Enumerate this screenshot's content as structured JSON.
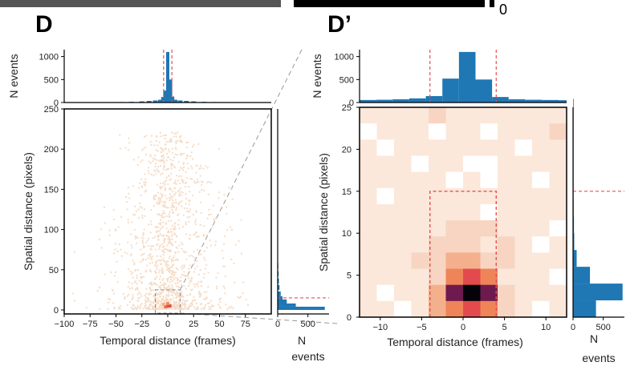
{
  "panels": {
    "left_letter": "D",
    "right_letter": "D’",
    "top_zero": "0"
  },
  "chart_data": [
    {
      "id": "D-main",
      "type": "heatmap",
      "xlabel": "Temporal distance (frames)",
      "ylabel": "Spatial distance (pixels)",
      "xlim": [
        -100,
        100
      ],
      "ylim": [
        -5,
        250
      ],
      "x_ticks": [
        "−100",
        "−75",
        "−50",
        "−25",
        "0",
        "25",
        "50",
        "75"
      ],
      "x_tick_values": [
        -100,
        -75,
        -50,
        -25,
        0,
        25,
        50,
        75
      ],
      "y_ticks": [
        "0",
        "50",
        "100",
        "150",
        "200",
        "250"
      ],
      "y_tick_values": [
        0,
        50,
        100,
        150,
        200,
        250
      ],
      "colormap": [
        "#f7e1d0",
        "#f4a582",
        "#d6604d",
        "#8b1a4a",
        "#1a0a1f"
      ],
      "threshold_box": {
        "x": [
          -4,
          4
        ],
        "y": [
          0,
          15
        ]
      },
      "zoom_box": {
        "x": [
          -12,
          12
        ],
        "y": [
          0,
          25
        ]
      }
    },
    {
      "id": "D-top-hist",
      "type": "bar",
      "ylabel": "N events",
      "y_ticks": [
        "0",
        "500",
        "1000"
      ],
      "y_tick_values": [
        0,
        500,
        1000
      ],
      "ylim": [
        0,
        1150
      ],
      "bin_centers": [
        -60,
        -45,
        -35,
        -25,
        -18,
        -12,
        -7,
        -4,
        -2,
        0,
        2,
        4,
        7,
        12,
        18,
        25,
        35,
        45,
        60
      ],
      "values": [
        5,
        10,
        15,
        25,
        35,
        45,
        60,
        120,
        260,
        1100,
        500,
        130,
        60,
        45,
        35,
        25,
        15,
        10,
        5
      ],
      "bar_color": "#1f77b4",
      "threshold_lines_x": [
        -4,
        4
      ]
    },
    {
      "id": "D-right-hist",
      "type": "bar",
      "orientation": "horizontal",
      "xlabel": "N\nevents",
      "xlabel_lines": [
        "N",
        "events"
      ],
      "x_ticks": [
        "0",
        "500"
      ],
      "x_tick_values": [
        0,
        500
      ],
      "xlim": [
        0,
        850
      ],
      "bin_centers": [
        2,
        6,
        10,
        14,
        20,
        28,
        36,
        45,
        55,
        70,
        90,
        110
      ],
      "values": [
        780,
        300,
        150,
        80,
        50,
        30,
        20,
        15,
        10,
        6,
        4,
        2
      ],
      "bar_color": "#1f77b4",
      "threshold_line_y": 15
    },
    {
      "id": "Dprime-main",
      "type": "heatmap",
      "xlabel": "Temporal distance (frames)",
      "ylabel": "Spatial distance (pixels)",
      "xlim": [
        -12.5,
        12.5
      ],
      "ylim": [
        0,
        25
      ],
      "x_ticks": [
        "−10",
        "−5",
        "0",
        "5",
        "10"
      ],
      "x_tick_values": [
        -10,
        -5,
        0,
        5,
        10
      ],
      "y_ticks": [
        "0",
        "5",
        "10",
        "15",
        "20",
        "25"
      ],
      "y_tick_values": [
        0,
        5,
        10,
        15,
        20,
        25
      ],
      "threshold_box": {
        "x": [
          -4,
          4
        ],
        "y": [
          0,
          15
        ]
      },
      "cells_legend": "levels 0=empty,1=pale,2=light,3=salmon,4=orange,5=red,6=magenta,7=black",
      "grid_x_start": -12.5,
      "grid_dx": 2,
      "grid_y_start": 0,
      "grid_dy": 2,
      "grid_rows_top_to_bottom": [
        [
          1,
          1,
          1,
          1,
          2,
          1,
          1,
          1,
          1,
          1,
          1,
          1
        ],
        [
          0,
          1,
          1,
          1,
          0,
          1,
          1,
          0,
          1,
          1,
          1,
          2
        ],
        [
          1,
          0,
          1,
          1,
          1,
          1,
          1,
          1,
          1,
          0,
          1,
          1
        ],
        [
          1,
          1,
          1,
          0,
          1,
          1,
          0,
          0,
          1,
          1,
          1,
          1
        ],
        [
          1,
          1,
          1,
          1,
          1,
          0,
          1,
          0,
          1,
          1,
          0,
          1
        ],
        [
          1,
          0,
          1,
          1,
          1,
          1,
          1,
          1,
          1,
          1,
          1,
          1
        ],
        [
          1,
          1,
          1,
          1,
          1,
          1,
          1,
          0,
          1,
          1,
          1,
          1
        ],
        [
          1,
          1,
          1,
          1,
          1,
          2,
          2,
          2,
          1,
          1,
          1,
          0
        ],
        [
          1,
          1,
          1,
          1,
          2,
          2,
          2,
          1,
          2,
          1,
          0,
          1
        ],
        [
          1,
          1,
          1,
          2,
          2,
          3,
          3,
          2,
          2,
          1,
          1,
          1
        ],
        [
          1,
          1,
          1,
          1,
          2,
          4,
          5,
          4,
          1,
          1,
          1,
          0
        ],
        [
          1,
          0,
          1,
          1,
          3,
          6,
          7,
          6,
          2,
          1,
          1,
          1
        ],
        [
          1,
          1,
          0,
          1,
          3,
          4,
          5,
          4,
          2,
          1,
          0,
          1
        ]
      ],
      "colors": [
        "#ffffff",
        "#fbe8da",
        "#f7d5c2",
        "#f4b08c",
        "#ef8458",
        "#e34a4e",
        "#6e1a4f",
        "#050307"
      ]
    },
    {
      "id": "Dprime-top-hist",
      "type": "bar",
      "ylabel": "N events",
      "y_ticks": [
        "0",
        "500",
        "1000"
      ],
      "y_tick_values": [
        0,
        500,
        1000
      ],
      "ylim": [
        0,
        1150
      ],
      "bin_centers": [
        -11.5,
        -9.5,
        -7.5,
        -5.5,
        -3.5,
        -1.5,
        0.5,
        2.5,
        4.5,
        6.5,
        8.5,
        10.5,
        12
      ],
      "values": [
        55,
        60,
        70,
        90,
        140,
        520,
        1100,
        500,
        120,
        70,
        60,
        55,
        50
      ],
      "bar_color": "#1f77b4",
      "threshold_lines_x": [
        -4,
        4
      ]
    },
    {
      "id": "Dprime-right-hist",
      "type": "bar",
      "orientation": "horizontal",
      "xlabel_lines": [
        "N",
        "events"
      ],
      "x_ticks": [
        "0",
        "500"
      ],
      "x_tick_values": [
        0,
        500
      ],
      "xlim": [
        0,
        850
      ],
      "bin_centers": [
        1,
        3,
        5,
        7,
        9,
        11,
        13,
        15,
        17,
        19,
        21,
        23,
        25
      ],
      "values": [
        380,
        820,
        280,
        60,
        20,
        15,
        12,
        10,
        8,
        6,
        5,
        4,
        3
      ],
      "bar_color": "#1f77b4",
      "threshold_line_y": 15
    }
  ]
}
